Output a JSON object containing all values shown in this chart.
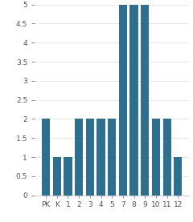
{
  "categories": [
    "PK",
    "K",
    "1",
    "2",
    "3",
    "4",
    "5",
    "7",
    "8",
    "9",
    "10",
    "11",
    "12"
  ],
  "values": [
    2,
    1,
    1,
    2,
    2,
    2,
    2,
    5,
    5,
    5,
    2,
    2,
    1
  ],
  "bar_color": "#2e6e8e",
  "ylim": [
    0,
    5
  ],
  "yticks": [
    0,
    0.5,
    1,
    1.5,
    2,
    2.5,
    3,
    3.5,
    4,
    4.5,
    5
  ],
  "ytick_labels": [
    "0",
    "0.5",
    "1",
    "1.5",
    "2",
    "2.5",
    "3",
    "3.5",
    "4",
    "4.5",
    "5"
  ],
  "background_color": "#ffffff",
  "tick_fontsize": 6.5,
  "bar_width": 0.75
}
